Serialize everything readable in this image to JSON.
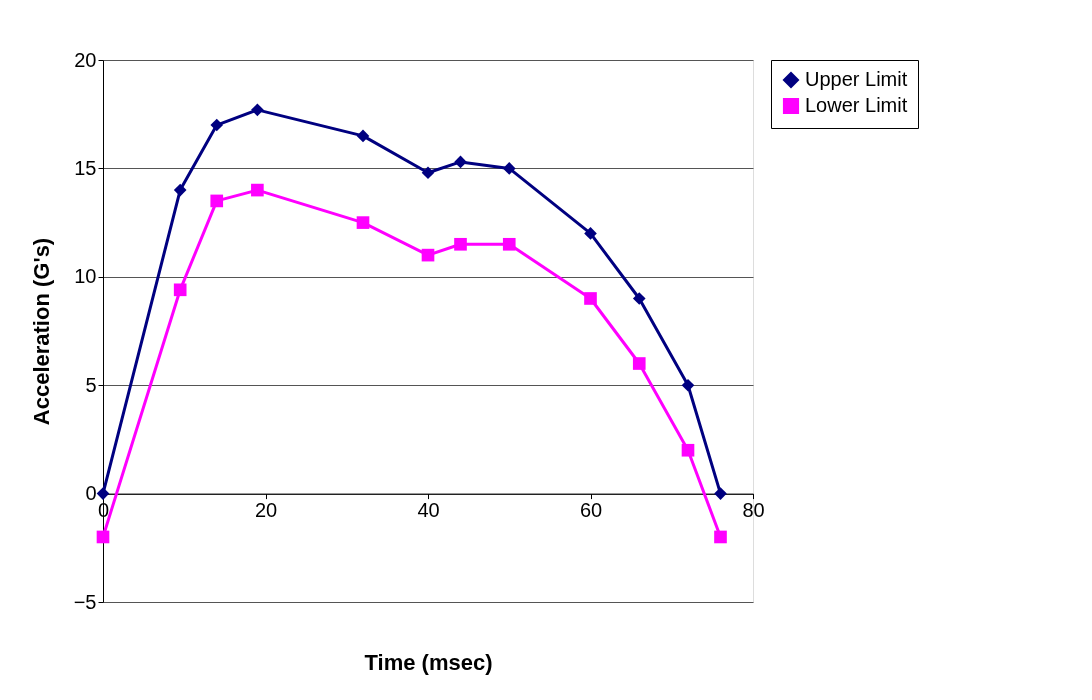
{
  "chart_data": {
    "type": "line",
    "xlabel": "Time (msec)",
    "ylabel": "Acceleration (G's)",
    "x": [
      0,
      9.5,
      14,
      19,
      32,
      40,
      44,
      50,
      60,
      66,
      72,
      76
    ],
    "series": [
      {
        "name": "Upper Limit",
        "color": "#000080",
        "marker": "diamond",
        "values": [
          0,
          14,
          17,
          17.7,
          16.5,
          14.8,
          15.3,
          15,
          12,
          9,
          5,
          0
        ]
      },
      {
        "name": "Lower Limit",
        "color": "#ff00ff",
        "marker": "square",
        "values": [
          -2,
          9.4,
          13.5,
          14,
          12.5,
          11,
          11.5,
          11.5,
          9,
          6,
          2,
          -2
        ]
      }
    ],
    "xlim": [
      0,
      80
    ],
    "xticks": [
      0,
      20,
      40,
      60,
      80
    ],
    "ylim": [
      -5,
      20
    ],
    "yticks": [
      -5,
      0,
      5,
      10,
      15,
      20
    ],
    "grid": "y",
    "legend": "right",
    "line_style": "solid"
  }
}
